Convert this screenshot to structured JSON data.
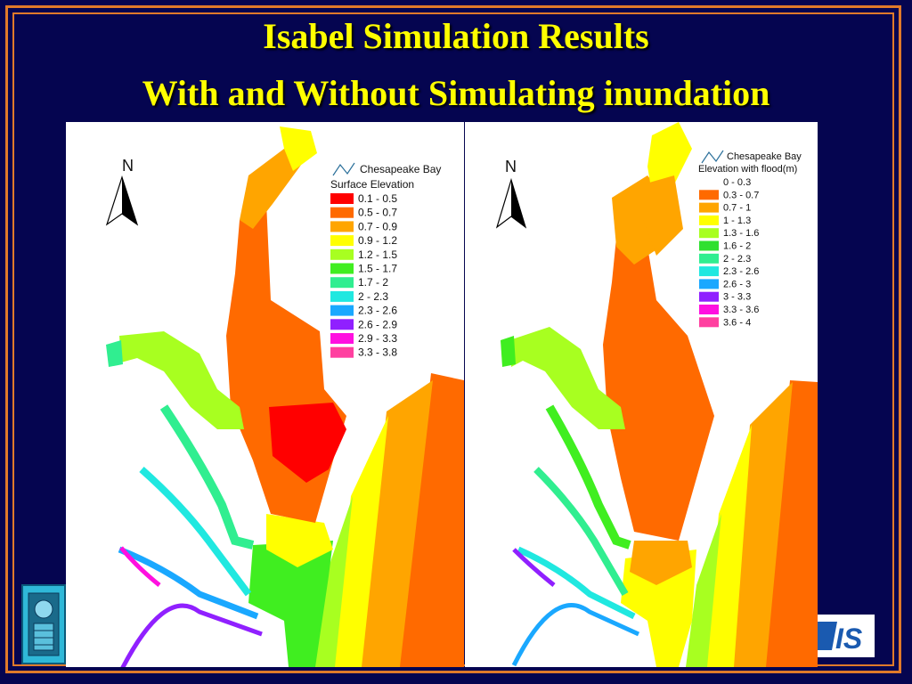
{
  "slide": {
    "title_line1": "Isabel Simulation Results",
    "title_line2": "With and Without Simulating inundation",
    "colors": {
      "background": "#050550",
      "border": "#e07a2a",
      "title": "#ffff00"
    }
  },
  "left_map": {
    "north_label": "N",
    "legend_title_line1": "Chesapeake Bay",
    "legend_title_line2": "Surface Elevation",
    "legend": [
      {
        "label": "0.1 - 0.5",
        "color": "#ff0000"
      },
      {
        "label": "0.5 - 0.7",
        "color": "#ff6a00"
      },
      {
        "label": "0.7 - 0.9",
        "color": "#ffa500"
      },
      {
        "label": "0.9 - 1.2",
        "color": "#ffff00"
      },
      {
        "label": "1.2 - 1.5",
        "color": "#a8ff20"
      },
      {
        "label": "1.5 - 1.7",
        "color": "#40ee20"
      },
      {
        "label": "1.7 - 2",
        "color": "#30ee90"
      },
      {
        "label": "2 - 2.3",
        "color": "#20e8e0"
      },
      {
        "label": "2.3 - 2.6",
        "color": "#1aa8ff"
      },
      {
        "label": "2.6 - 2.9",
        "color": "#9020ff"
      },
      {
        "label": "2.9 - 3.3",
        "color": "#ff10e0"
      },
      {
        "label": "3.3 - 3.8",
        "color": "#ff40a0"
      }
    ]
  },
  "right_map": {
    "north_label": "N",
    "legend_title_line1": "Chesapeake Bay",
    "legend_title_line2": "Elevation with flood(m)",
    "legend": [
      {
        "label": "0 - 0.3",
        "color": "#ffffff"
      },
      {
        "label": "0.3 - 0.7",
        "color": "#ff6a00"
      },
      {
        "label": "0.7 - 1",
        "color": "#ffa500"
      },
      {
        "label": "1 - 1.3",
        "color": "#ffff00"
      },
      {
        "label": "1.3 - 1.6",
        "color": "#a8ff20"
      },
      {
        "label": "1.6 - 2",
        "color": "#30e030"
      },
      {
        "label": "2 - 2.3",
        "color": "#30ee90"
      },
      {
        "label": "2.3 - 2.6",
        "color": "#20e8e0"
      },
      {
        "label": "2.6 - 3",
        "color": "#1aa8ff"
      },
      {
        "label": "3 - 3.3",
        "color": "#9020ff"
      },
      {
        "label": "3.3 - 3.6",
        "color": "#ff10e0"
      },
      {
        "label": "3.6 - 4",
        "color": "#ff40a0"
      }
    ]
  },
  "logo_right_text": "IS"
}
